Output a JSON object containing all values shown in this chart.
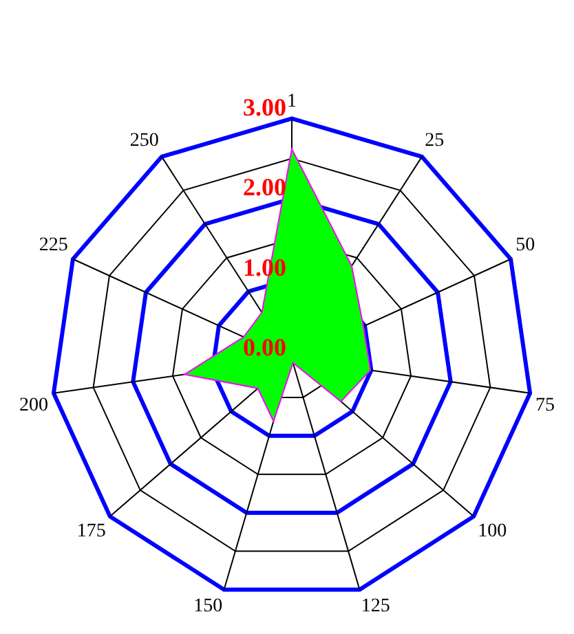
{
  "chart_data": {
    "type": "radar",
    "categories": [
      "1",
      "25",
      "50",
      "75",
      "100",
      "125",
      "150",
      "175",
      "200",
      "225",
      "250"
    ],
    "series": [
      {
        "color": "#00ff00",
        "values": [
          2.62,
          1.38,
          0.98,
          0.99,
          0.81,
          0.05,
          0.81,
          0.56,
          1.35,
          0.66,
          0.69
        ]
      }
    ],
    "ylim": [
      0,
      3
    ],
    "yticks": [
      {
        "value": 0,
        "label": "0.00"
      },
      {
        "value": 1,
        "label": "1.00"
      },
      {
        "value": 2,
        "label": "2.00"
      },
      {
        "value": 3,
        "label": "3.00"
      }
    ],
    "grid": true
  }
}
